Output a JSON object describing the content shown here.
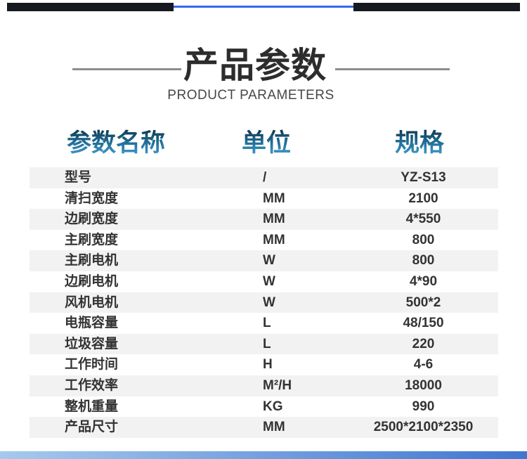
{
  "section": {
    "title": "产品参数",
    "subtitle": "PRODUCT PARAMETERS"
  },
  "table": {
    "headers": {
      "name": "参数名称",
      "unit": "单位",
      "spec": "规格"
    },
    "rows": [
      {
        "name": "型号",
        "unit": "/",
        "spec": "YZ-S13"
      },
      {
        "name": "清扫宽度",
        "unit": "MM",
        "spec": "2100"
      },
      {
        "name": "边刷宽度",
        "unit": "MM",
        "spec": "4*550"
      },
      {
        "name": "主刷宽度",
        "unit": "MM",
        "spec": "800"
      },
      {
        "name": "主刷电机",
        "unit": "W",
        "spec": "800"
      },
      {
        "name": "边刷电机",
        "unit": "W",
        "spec": "4*90"
      },
      {
        "name": "风机电机",
        "unit": "W",
        "spec": "500*2"
      },
      {
        "name": "电瓶容量",
        "unit": "L",
        "spec": "48/150"
      },
      {
        "name": "垃圾容量",
        "unit": "L",
        "spec": "220"
      },
      {
        "name": "工作时间",
        "unit": "H",
        "spec": "4-6"
      },
      {
        "name": "工作效率",
        "unit": "M²/H",
        "spec": "18000"
      },
      {
        "name": "整机重量",
        "unit": "KG",
        "spec": "990"
      },
      {
        "name": "产品尺寸",
        "unit": "MM",
        "spec": "2500*2100*2350"
      }
    ]
  },
  "colors": {
    "stripe_bg": "#f2f2f2",
    "title_color": "#2d2d2d",
    "header_text_gradient_top": "#123f58",
    "header_text_gradient_bottom": "#45a0d2",
    "top_bar_color": "#171920",
    "top_line_color": "#2e6bf0",
    "bottom_bar_color_left": "#a6c9ec",
    "bottom_bar_color_right": "#3f76d2"
  }
}
